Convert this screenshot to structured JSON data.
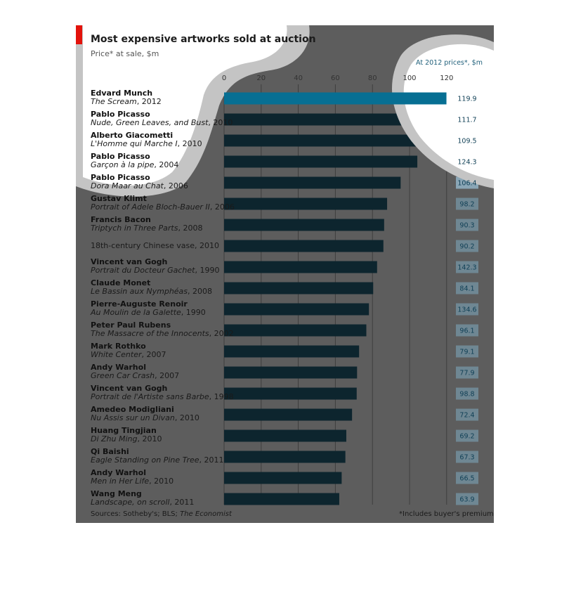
{
  "chart_data": {
    "type": "bar",
    "title": "Most expensive artworks sold at auction",
    "subtitle": "Price* at sale, $m",
    "xlim": [
      0,
      120
    ],
    "x_ticks": [
      "0",
      "20",
      "40",
      "60",
      "80",
      "100",
      "120"
    ],
    "grid": true,
    "adjusted_header": "At 2012 prices*, $m",
    "footnote_sources": "Sources: Sotheby's; BLS; ",
    "footnote_sources_italic": "The Economist",
    "footnote_premium": "*Includes buyer's premium",
    "colors": {
      "background": "#5d5d5d",
      "bar": "#0d252e",
      "bar_highlight": "#076f93",
      "value_box": "#6f8793",
      "value_box_highlight": "#8aa6b6",
      "accent_red": "#e3120b"
    },
    "items": [
      {
        "artist": "Edvard Munch",
        "work": "The Scream",
        "year": ", 2012",
        "value": 119.9,
        "adjusted": "119.9"
      },
      {
        "artist": "Pablo Picasso",
        "work": "Nude, Green Leaves, and Bust",
        "year": ", 2010",
        "value": 106.5,
        "adjusted": "111.7"
      },
      {
        "artist": "Alberto Giacometti",
        "work": "L'Homme qui Marche I",
        "year": ", 2010",
        "value": 104.3,
        "adjusted": "109.5"
      },
      {
        "artist": "Pablo Picasso",
        "work": "Garçon à la pipe",
        "year": ", 2004",
        "value": 104.2,
        "adjusted": "124.3"
      },
      {
        "artist": "Pablo Picasso",
        "work": "Dora Maar au Chat",
        "year": ", 2006",
        "value": 95.2,
        "adjusted": "106.4"
      },
      {
        "artist": "Gustav Klimt",
        "work": "Portrait of Adele Bloch-Bauer II",
        "year": ", 2006",
        "value": 87.9,
        "adjusted": "98.2"
      },
      {
        "artist": "Francis Bacon",
        "work": "Triptych in Three Parts",
        "year": ", 2008",
        "value": 86.3,
        "adjusted": "90.3"
      },
      {
        "artist": "",
        "work": "",
        "year": "",
        "single": "18th-century Chinese vase, 2010",
        "value": 85.9,
        "adjusted": "90.2"
      },
      {
        "artist": "Vincent van Gogh",
        "work": "Portrait du Docteur Gachet",
        "year": ", 1990",
        "value": 82.5,
        "adjusted": "142.3"
      },
      {
        "artist": "Claude Monet",
        "work": "Le Bassin aux Nymphéas",
        "year": ", 2008",
        "value": 80.4,
        "adjusted": "84.1"
      },
      {
        "artist": "Pierre-Auguste Renoir",
        "work": "Au Moulin de la Galette",
        "year": ", 1990",
        "value": 78.1,
        "adjusted": "134.6"
      },
      {
        "artist": "Peter Paul Rubens",
        "work": "The Massacre of the Innocents",
        "year": ", 2002",
        "value": 76.7,
        "adjusted": "96.1"
      },
      {
        "artist": "Mark Rothko",
        "work": "White Center",
        "year": ", 2007",
        "value": 72.8,
        "adjusted": "79.1"
      },
      {
        "artist": "Andy Warhol",
        "work": "Green Car Crash",
        "year": ", 2007",
        "value": 71.7,
        "adjusted": "77.9"
      },
      {
        "artist": "Vincent van Gogh",
        "work": "Portrait de l'Artiste sans Barbe",
        "year": ", 1998",
        "value": 71.5,
        "adjusted": "98.8"
      },
      {
        "artist": "Amedeo Modigliani",
        "work": "Nu Assis sur un Divan",
        "year": ", 2010",
        "value": 69.0,
        "adjusted": "72.4"
      },
      {
        "artist": "Huang Tingjian",
        "work": "Di Zhu Ming",
        "year": ", 2010",
        "value": 65.9,
        "adjusted": "69.2"
      },
      {
        "artist": "Qi Baishi",
        "work": "Eagle Standing on Pine Tree",
        "year": ", 2011",
        "value": 65.4,
        "adjusted": "67.3"
      },
      {
        "artist": "Andy Warhol",
        "work": "Men in Her Life",
        "year": ", 2010",
        "value": 63.4,
        "adjusted": "66.5"
      },
      {
        "artist": "Wang Meng",
        "work": "Landscape, on scroll",
        "year": ", 2011",
        "value": 62.1,
        "adjusted": "63.9"
      }
    ]
  }
}
